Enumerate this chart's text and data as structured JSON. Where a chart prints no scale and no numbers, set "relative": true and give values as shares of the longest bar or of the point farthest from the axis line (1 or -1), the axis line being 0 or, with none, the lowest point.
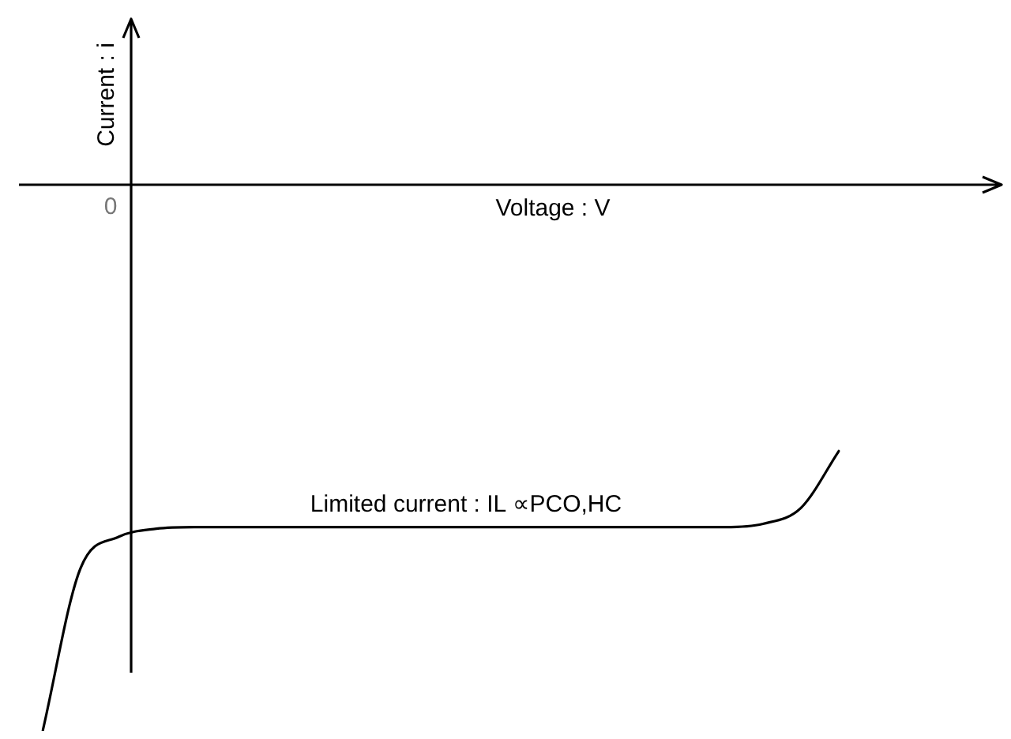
{
  "chart_data": {
    "type": "line",
    "relative": true,
    "xlabel": "Voltage : V",
    "ylabel": "Current : i",
    "annotations": [
      "0",
      "Limited current : IL ∝PCO,HC"
    ],
    "categories": [
      null,
      null,
      null,
      null,
      null,
      null,
      null,
      null,
      null,
      null,
      null,
      null,
      null,
      null,
      null,
      null,
      null,
      null,
      null,
      null,
      null,
      null
    ],
    "series": [
      {
        "color": "#000000",
        "values": [
          -1,
          -0.702,
          -0.645,
          -0.63,
          -0.627,
          -0.627,
          -0.627,
          -0.627,
          -0.627,
          -0.627,
          -0.627,
          -0.627,
          -0.627,
          -0.627,
          -0.627,
          -0.627,
          -0.627,
          -0.627,
          -0.627,
          -0.621,
          -0.592,
          -0.488
        ]
      }
    ],
    "grid": false,
    "legend": false,
    "marker": "none",
    "line_style": "solid"
  }
}
